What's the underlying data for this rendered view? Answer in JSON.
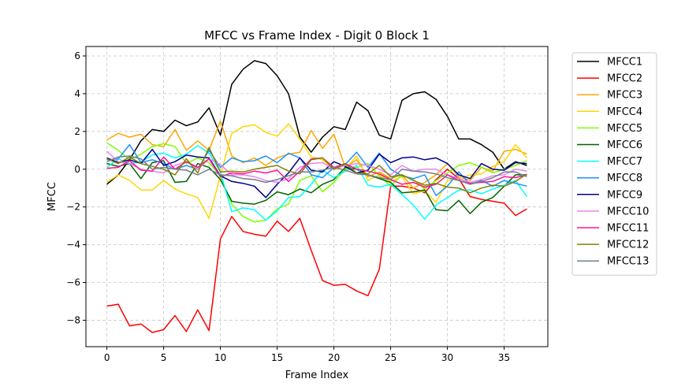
{
  "chart_data": {
    "type": "line",
    "title": "MFCC vs Frame Index - Digit 0 Block 1",
    "xlabel": "Frame Index",
    "ylabel": "MFCC",
    "xlim": [
      -1.85,
      38.85
    ],
    "ylim": [
      -9.4,
      6.5
    ],
    "xticks": [
      0,
      5,
      10,
      15,
      20,
      25,
      30,
      35
    ],
    "yticks": [
      -8,
      -6,
      -4,
      -2,
      0,
      2,
      4,
      6
    ],
    "grid": true,
    "legend_position": "outside-right-top",
    "x": [
      0,
      1,
      2,
      3,
      4,
      5,
      6,
      7,
      8,
      9,
      10,
      11,
      12,
      13,
      14,
      15,
      16,
      17,
      18,
      19,
      20,
      21,
      22,
      23,
      24,
      25,
      26,
      27,
      28,
      29,
      30,
      31,
      32,
      33,
      34,
      35,
      36,
      37
    ],
    "series": [
      {
        "name": "MFCC1",
        "color": "#000000",
        "values": [
          -0.8,
          -0.3,
          0.5,
          1.5,
          2.1,
          2.0,
          2.6,
          2.3,
          2.5,
          3.25,
          1.8,
          4.5,
          5.3,
          5.75,
          5.6,
          4.95,
          4.0,
          1.7,
          0.9,
          1.7,
          2.25,
          2.1,
          3.55,
          3.1,
          1.8,
          1.6,
          3.65,
          4.0,
          4.1,
          3.7,
          2.8,
          1.6,
          1.6,
          1.3,
          0.9,
          0.0,
          0.4,
          0.2
        ]
      },
      {
        "name": "MFCC2",
        "color": "#ff0000",
        "values": [
          -7.25,
          -7.15,
          -8.3,
          -8.2,
          -8.65,
          -8.5,
          -7.75,
          -8.6,
          -7.45,
          -8.55,
          -3.7,
          -2.5,
          -3.3,
          -3.45,
          -3.55,
          -2.75,
          -3.3,
          -2.6,
          -4.3,
          -5.9,
          -6.15,
          -6.1,
          -6.45,
          -6.7,
          -5.3,
          -0.9,
          -0.9,
          -1.0,
          -1.25,
          -0.55,
          0.0,
          -0.5,
          -1.45,
          -1.6,
          -1.7,
          -1.8,
          -2.45,
          -2.1
        ]
      },
      {
        "name": "MFCC3",
        "color": "#ffa500",
        "values": [
          1.55,
          1.9,
          1.7,
          1.85,
          1.3,
          1.2,
          2.1,
          1.0,
          1.5,
          1.0,
          2.55,
          0.7,
          0.35,
          0.6,
          0.2,
          0.6,
          0.8,
          0.9,
          2.05,
          1.1,
          1.85,
          0.1,
          0.5,
          -0.4,
          -0.15,
          -0.5,
          -0.3,
          -1.0,
          -0.7,
          -0.3,
          0.3,
          -0.4,
          -0.6,
          0.1,
          -0.1,
          0.95,
          1.05,
          0.8
        ]
      },
      {
        "name": "MFCC4",
        "color": "#ffd700",
        "values": [
          -0.7,
          -0.3,
          -0.6,
          -1.1,
          -1.1,
          -0.6,
          -1.05,
          -1.3,
          -1.5,
          -2.6,
          -0.35,
          1.9,
          2.25,
          2.35,
          1.95,
          1.75,
          2.4,
          1.6,
          0.65,
          0.5,
          0.0,
          0.0,
          0.7,
          -0.6,
          -0.3,
          -0.65,
          -0.4,
          -1.3,
          -1.15,
          -1.75,
          -0.6,
          -0.5,
          -0.3,
          -0.25,
          0.15,
          0.4,
          1.3,
          0.6
        ]
      },
      {
        "name": "MFCC5",
        "color": "#7fff00",
        "values": [
          1.4,
          1.0,
          0.5,
          0.8,
          1.2,
          1.35,
          1.2,
          0.3,
          0.6,
          0.35,
          -0.35,
          -1.85,
          -2.5,
          -2.8,
          -2.7,
          -2.1,
          -1.85,
          -0.6,
          -0.35,
          -1.2,
          -0.7,
          0.0,
          0.1,
          0.3,
          -0.35,
          -0.9,
          -0.3,
          -0.55,
          -1.05,
          -0.6,
          -0.2,
          0.2,
          0.35,
          0.1,
          -0.2,
          0.0,
          0.2,
          0.45
        ]
      },
      {
        "name": "MFCC6",
        "color": "#006400",
        "values": [
          0.3,
          0.15,
          0.3,
          -0.5,
          0.35,
          0.45,
          -0.7,
          -0.65,
          0.3,
          0.1,
          -0.55,
          -1.7,
          -1.8,
          -1.85,
          -1.65,
          -1.2,
          -1.35,
          -1.05,
          -1.25,
          -0.8,
          -0.55,
          0.1,
          0.0,
          -0.3,
          -0.5,
          -0.7,
          -1.25,
          -1.2,
          -1.1,
          -2.15,
          -2.2,
          -1.65,
          -2.35,
          -1.75,
          -1.5,
          -0.9,
          -0.3,
          -0.3
        ]
      },
      {
        "name": "MFCC7",
        "color": "#00ffff",
        "values": [
          0.1,
          0.55,
          0.3,
          0.4,
          0.75,
          0.85,
          0.6,
          0.8,
          1.25,
          0.85,
          -0.15,
          -2.25,
          -2.05,
          -2.15,
          -2.7,
          -2.2,
          -1.5,
          -1.45,
          -0.8,
          -0.05,
          -0.45,
          -0.1,
          0.2,
          -0.85,
          -0.95,
          -0.8,
          -1.35,
          -1.9,
          -2.65,
          -1.9,
          -1.5,
          -1.1,
          -1.1,
          -1.3,
          -1.05,
          -0.85,
          -0.6,
          -1.45
        ]
      },
      {
        "name": "MFCC8",
        "color": "#1e90ff",
        "values": [
          0.5,
          0.55,
          1.3,
          0.35,
          0.5,
          0.3,
          0.0,
          0.2,
          0.0,
          1.0,
          0.1,
          0.6,
          0.4,
          0.45,
          0.7,
          0.35,
          0.85,
          0.6,
          -0.3,
          -0.45,
          0.1,
          0.25,
          0.9,
          0.1,
          0.85,
          0.0,
          -0.35,
          -0.5,
          -0.3,
          -1.4,
          -0.9,
          -0.15,
          -0.8,
          -0.6,
          -0.9,
          -0.6,
          -0.75,
          -0.9
        ]
      },
      {
        "name": "MFCC9",
        "color": "#00008b",
        "values": [
          0.6,
          0.35,
          0.5,
          0.3,
          1.05,
          0.2,
          0.4,
          0.75,
          0.65,
          0.6,
          -0.35,
          -0.65,
          -0.75,
          -0.9,
          -1.5,
          -0.8,
          -0.2,
          0.6,
          -0.05,
          -0.15,
          0.4,
          0.15,
          -0.2,
          -0.05,
          0.8,
          0.35,
          0.6,
          0.65,
          0.5,
          0.6,
          0.3,
          -0.3,
          -0.5,
          0.3,
          0.0,
          -0.05,
          0.35,
          0.3
        ]
      },
      {
        "name": "MFCC10",
        "color": "#ee82ee",
        "values": [
          0.95,
          0.4,
          0.3,
          0.0,
          -0.1,
          -0.2,
          0.2,
          0.4,
          0.0,
          0.55,
          0.25,
          -0.3,
          -0.3,
          -0.4,
          -0.6,
          -0.7,
          -0.5,
          0.1,
          0.3,
          0.35,
          0.0,
          0.2,
          0.3,
          0.2,
          0.0,
          -0.3,
          0.2,
          -0.1,
          0.0,
          0.0,
          -0.3,
          -0.5,
          -0.7,
          -0.55,
          -0.35,
          -0.3,
          0.0,
          -0.1
        ]
      },
      {
        "name": "MFCC11",
        "color": "#ff1493",
        "values": [
          0.05,
          0.1,
          0.45,
          -0.05,
          -0.1,
          0.65,
          0.0,
          0.4,
          0.1,
          0.55,
          -0.4,
          -0.2,
          -0.25,
          -0.1,
          -0.2,
          -0.05,
          -0.65,
          -0.1,
          0.55,
          0.6,
          0.1,
          0.3,
          0.0,
          -0.1,
          -0.25,
          -0.55,
          -0.8,
          -0.7,
          -0.95,
          -0.8,
          -0.3,
          -0.6,
          -0.75,
          -0.7,
          -0.65,
          -0.4,
          -0.45,
          -0.3
        ]
      },
      {
        "name": "MFCC12",
        "color": "#808000",
        "values": [
          0.55,
          0.3,
          0.65,
          0.3,
          0.15,
          0.0,
          -0.3,
          0.55,
          -0.2,
          1.15,
          -0.15,
          -0.1,
          -0.15,
          0.0,
          0.1,
          0.2,
          -0.1,
          -0.25,
          0.5,
          0.6,
          0.0,
          0.3,
          -0.2,
          -0.25,
          0.2,
          -0.4,
          -0.3,
          -0.6,
          -0.85,
          -0.75,
          -0.95,
          -1.0,
          -1.25,
          -1.0,
          -0.85,
          -0.9,
          -0.65,
          -0.25
        ]
      },
      {
        "name": "MFCC13",
        "color": "#708090",
        "values": [
          0.4,
          0.65,
          0.7,
          0.55,
          0.0,
          0.1,
          0.0,
          -0.05,
          -0.3,
          0.0,
          -0.3,
          -0.35,
          -0.5,
          -0.55,
          -0.7,
          -0.55,
          -0.35,
          -0.15,
          -0.15,
          -0.05,
          0.1,
          -0.05,
          -0.25,
          -0.3,
          -0.45,
          -0.55,
          0.0,
          -0.1,
          -0.15,
          -0.25,
          -0.45,
          -0.6,
          -0.8,
          -0.65,
          -0.45,
          -0.15,
          -0.15,
          -0.4
        ]
      }
    ]
  }
}
